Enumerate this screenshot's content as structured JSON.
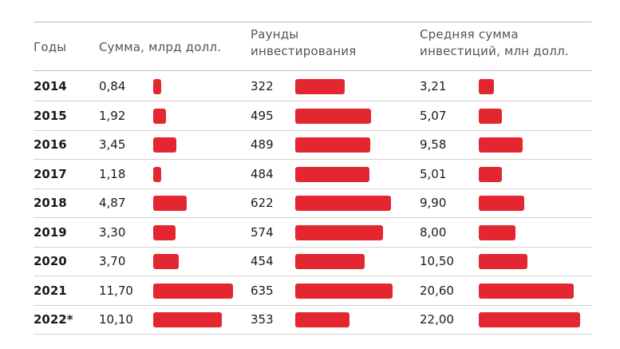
{
  "chart_data": {
    "type": "table",
    "columns": [
      "Годы",
      "Сумма, млрд долл.",
      "Раунды\nинвестирования",
      "Средняя сумма\nинвестиций, млн долл."
    ],
    "rows": [
      {
        "year": "2014",
        "sum": "0,84",
        "rounds": "322",
        "avg": "3,21"
      },
      {
        "year": "2015",
        "sum": "1,92",
        "rounds": "495",
        "avg": "5,07"
      },
      {
        "year": "2016",
        "sum": "3,45",
        "rounds": "489",
        "avg": "9,58"
      },
      {
        "year": "2017",
        "sum": "1,18",
        "rounds": "484",
        "avg": "5,01"
      },
      {
        "year": "2018",
        "sum": "4,87",
        "rounds": "622",
        "avg": "9,90"
      },
      {
        "year": "2019",
        "sum": "3,30",
        "rounds": "574",
        "avg": "8,00"
      },
      {
        "year": "2020",
        "sum": "3,70",
        "rounds": "454",
        "avg": "10,50"
      },
      {
        "year": "2021",
        "sum": "11,70",
        "rounds": "635",
        "avg": "20,60"
      },
      {
        "year": "2022*",
        "sum": "10,10",
        "rounds": "353",
        "avg": "22,00"
      }
    ],
    "bar_series": {
      "sum": [
        0.84,
        1.92,
        3.45,
        1.18,
        4.87,
        3.3,
        3.7,
        11.7,
        10.1
      ],
      "rounds": [
        322,
        495,
        489,
        484,
        622,
        574,
        454,
        635,
        353
      ],
      "avg": [
        3.21,
        5.07,
        9.58,
        5.01,
        9.9,
        8.0,
        10.5,
        20.6,
        22.0
      ]
    },
    "bar_color": "#e3262f"
  }
}
